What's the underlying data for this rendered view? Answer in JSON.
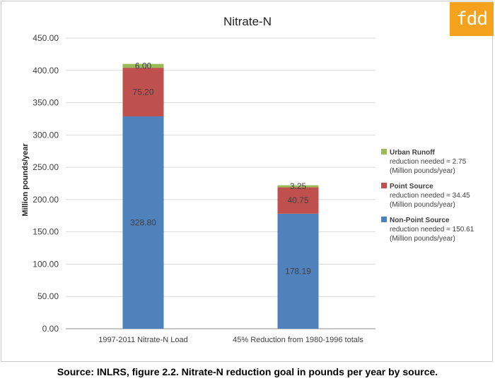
{
  "logo": {
    "text": "fdd",
    "color": "#f4a21e"
  },
  "caption": "Source:  INLRS, figure 2.2. Nitrate-N reduction goal in pounds per year by source.",
  "chart_data": {
    "type": "bar",
    "stacked": true,
    "title": "Nitrate-N",
    "xlabel": "",
    "ylabel": "Million pounds/year",
    "ylim": [
      0,
      450
    ],
    "y_ticks": [
      "0.00",
      "50.00",
      "100.00",
      "150.00",
      "200.00",
      "250.00",
      "300.00",
      "350.00",
      "400.00",
      "450.00"
    ],
    "grid": true,
    "categories": [
      "1997-2011 Nitrate-N Load",
      "45% Reduction from 1980-1996 totals"
    ],
    "series": [
      {
        "name": "Non-Point Source",
        "values": [
          328.8,
          178.19
        ],
        "labels": [
          "328.80",
          "178.19"
        ],
        "color": "#4f81bd"
      },
      {
        "name": "Point Source",
        "values": [
          75.2,
          40.75
        ],
        "labels": [
          "75.20",
          "40.75"
        ],
        "color": "#c0504d"
      },
      {
        "name": "Urban Runoff",
        "values": [
          6.0,
          3.25
        ],
        "labels": [
          "6.00",
          "3.25"
        ],
        "color": "#9bbb59"
      }
    ],
    "legend": {
      "placement": "right",
      "entries": [
        {
          "name": "Urban Runoff",
          "desc": [
            "reduction needed = 2.75",
            "(Million pounds/year)"
          ],
          "color": "#9bbb59"
        },
        {
          "name": "Point Source",
          "desc": [
            "reduction needed = 34.45",
            "(Million pounds/year)"
          ],
          "color": "#c0504d"
        },
        {
          "name": "Non-Point Source",
          "desc": [
            "reduction needed = 150.61",
            "(Million pounds/year)"
          ],
          "color": "#4f81bd"
        }
      ]
    }
  }
}
